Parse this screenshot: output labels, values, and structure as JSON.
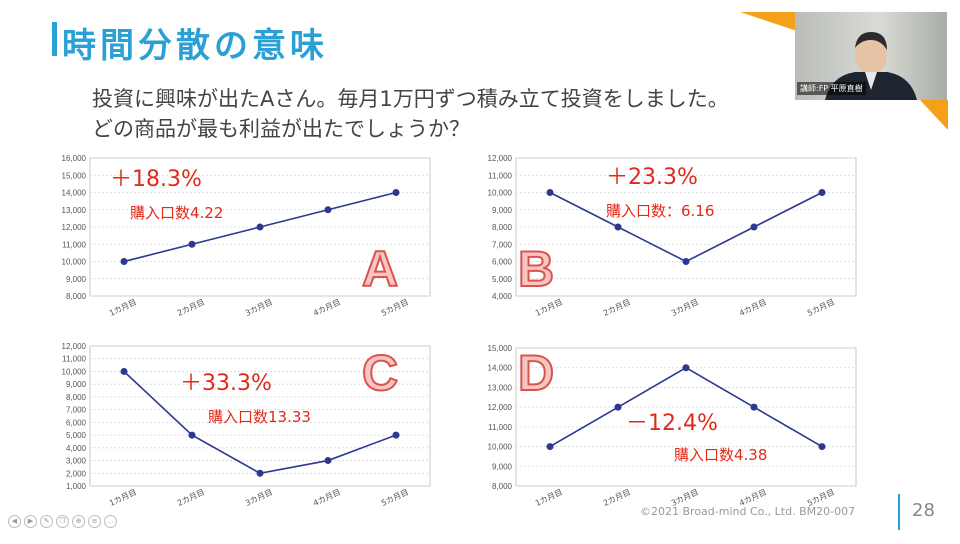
{
  "slide": {
    "title": "時間分散の意味",
    "question_line1": "投資に興味が出たAさん。毎月1万円ずつ積み立て投資をしました。",
    "question_line2": "どの商品が最も利益が出たでしょうか？",
    "video_caption": "講師:FP 平原直樹",
    "footer": "©2021 Broad-mind Co., Ltd.   BM20-007",
    "page_number": "28",
    "accent_color": "#2aa0d6",
    "orange_color": "#f5a01a",
    "line_color": "#2b3990",
    "annotation_color": "#e02a1a"
  },
  "chart_data": [
    {
      "type": "line",
      "letter": "A",
      "categories": [
        "1カ月目",
        "2カ月目",
        "3カ月目",
        "4カ月目",
        "5カ月目"
      ],
      "values": [
        10000,
        11000,
        12000,
        13000,
        14000
      ],
      "ylim": [
        8000,
        16000
      ],
      "ystep": 1000,
      "yticks": [
        "8,000",
        "9,000",
        "10,000",
        "11,000",
        "12,000",
        "13,000",
        "14,000",
        "15,000",
        "16,000"
      ],
      "return_label": "＋18.3%",
      "units_label": "購入口数4.22"
    },
    {
      "type": "line",
      "letter": "B",
      "categories": [
        "1カ月目",
        "2カ月目",
        "3カ月目",
        "4カ月目",
        "5カ月目"
      ],
      "values": [
        10000,
        8000,
        6000,
        8000,
        10000
      ],
      "ylim": [
        4000,
        12000
      ],
      "ystep": 1000,
      "yticks": [
        "4,000",
        "5,000",
        "6,000",
        "7,000",
        "8,000",
        "9,000",
        "10,000",
        "11,000",
        "12,000"
      ],
      "return_label": "＋23.3%",
      "units_label": "購入口数：6.16"
    },
    {
      "type": "line",
      "letter": "C",
      "categories": [
        "1カ月目",
        "2カ月目",
        "3カ月目",
        "4カ月目",
        "5カ月目"
      ],
      "values": [
        10000,
        5000,
        2000,
        3000,
        5000
      ],
      "ylim": [
        1000,
        12000
      ],
      "ystep": 1000,
      "yticks": [
        "1,000",
        "2,000",
        "3,000",
        "4,000",
        "5,000",
        "6,000",
        "7,000",
        "8,000",
        "9,000",
        "10,000",
        "11,000",
        "12,000"
      ],
      "return_label": "＋33.3%",
      "units_label": "購入口数13.33"
    },
    {
      "type": "line",
      "letter": "D",
      "categories": [
        "1カ月目",
        "2カ月目",
        "3カ月目",
        "4カ月目",
        "5カ月目"
      ],
      "values": [
        10000,
        12000,
        14000,
        12000,
        10000
      ],
      "ylim": [
        8000,
        15000
      ],
      "ystep": 1000,
      "yticks": [
        "8,000",
        "9,000",
        "10,000",
        "11,000",
        "12,000",
        "13,000",
        "14,000",
        "15,000"
      ],
      "return_label": "－12.4%",
      "units_label": "購入口数4.38"
    }
  ]
}
